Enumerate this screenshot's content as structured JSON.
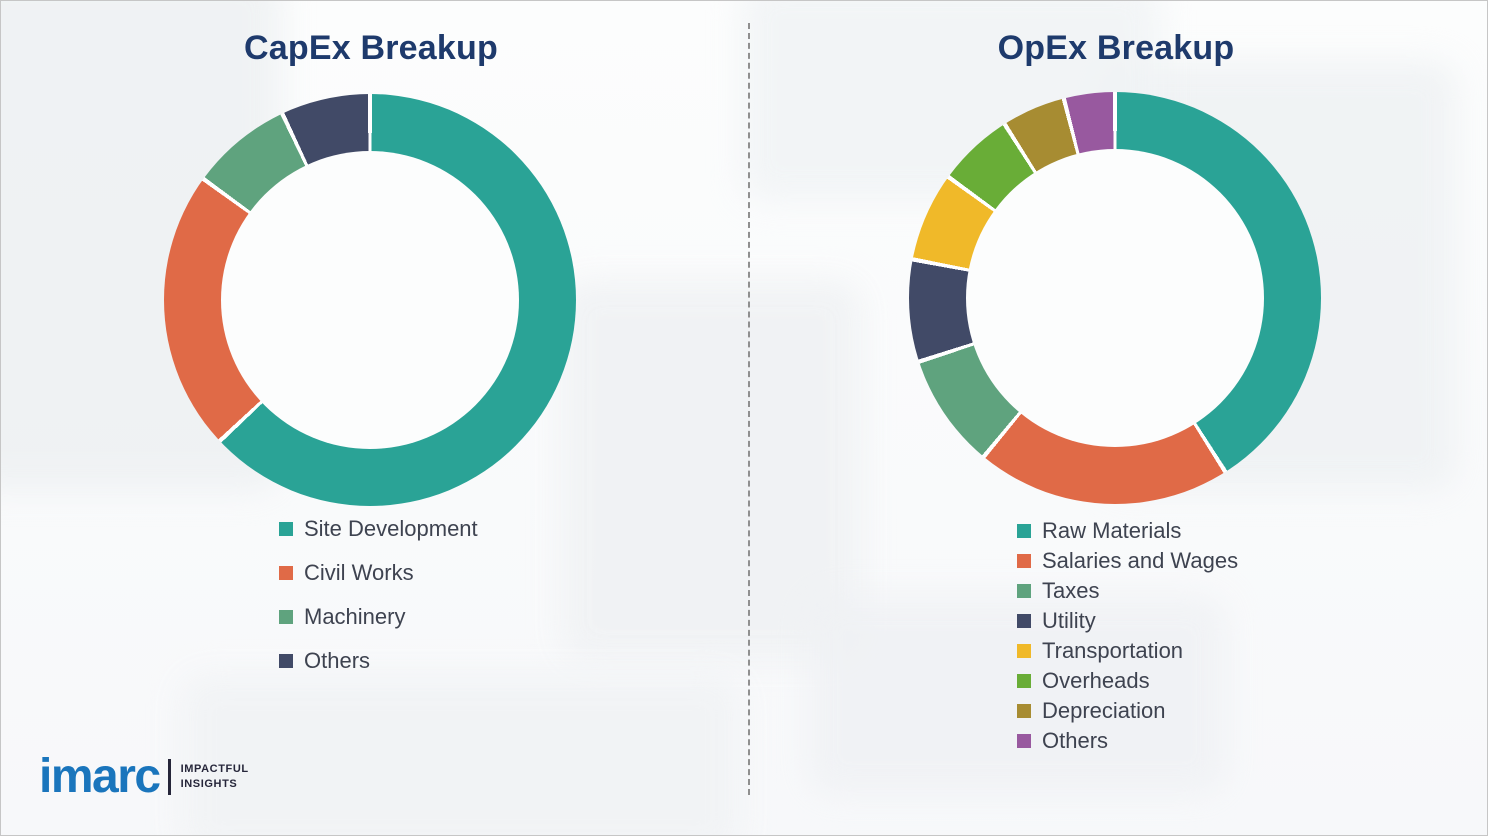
{
  "logo": {
    "brand": "imarc",
    "brand_color": "#1a75bc",
    "tagline_line1": "IMPACTFUL",
    "tagline_line2": "INSIGHTS",
    "tagline_color": "#26263a"
  },
  "divider": {
    "style": "vertical-dashed",
    "color": "#8f8f8f"
  },
  "chart_data": [
    {
      "type": "pie",
      "subtype": "donut",
      "title": "CapEx Breakup",
      "title_color": "#1e3a6c",
      "categories": [
        "Site Development",
        "Civil Works",
        "Machinery",
        "Others"
      ],
      "values": [
        63,
        22,
        8,
        7
      ],
      "colors": [
        "#2aa396",
        "#e06a47",
        "#5fa37e",
        "#414a67"
      ],
      "values_note": "percent shares estimated from arc angles; no data labels shown in image",
      "start_angle_deg": 0,
      "direction": "clockwise",
      "legend_position": "below-chart-left",
      "slice_separator_color": "#ffffff"
    },
    {
      "type": "pie",
      "subtype": "donut",
      "title": "OpEx Breakup",
      "title_color": "#1e3a6c",
      "categories": [
        "Raw Materials",
        "Salaries and Wages",
        "Taxes",
        "Utility",
        "Transportation",
        "Overheads",
        "Depreciation",
        "Others"
      ],
      "values": [
        41,
        20,
        9,
        8,
        7,
        6,
        5,
        4
      ],
      "colors": [
        "#2aa396",
        "#e06a47",
        "#5fa37e",
        "#414a67",
        "#f0b929",
        "#69ad37",
        "#a78c32",
        "#98599f"
      ],
      "values_note": "percent shares estimated from arc angles; no data labels shown in image",
      "start_angle_deg": 0,
      "direction": "clockwise",
      "legend_position": "below-chart-left",
      "slice_separator_color": "#ffffff"
    }
  ]
}
